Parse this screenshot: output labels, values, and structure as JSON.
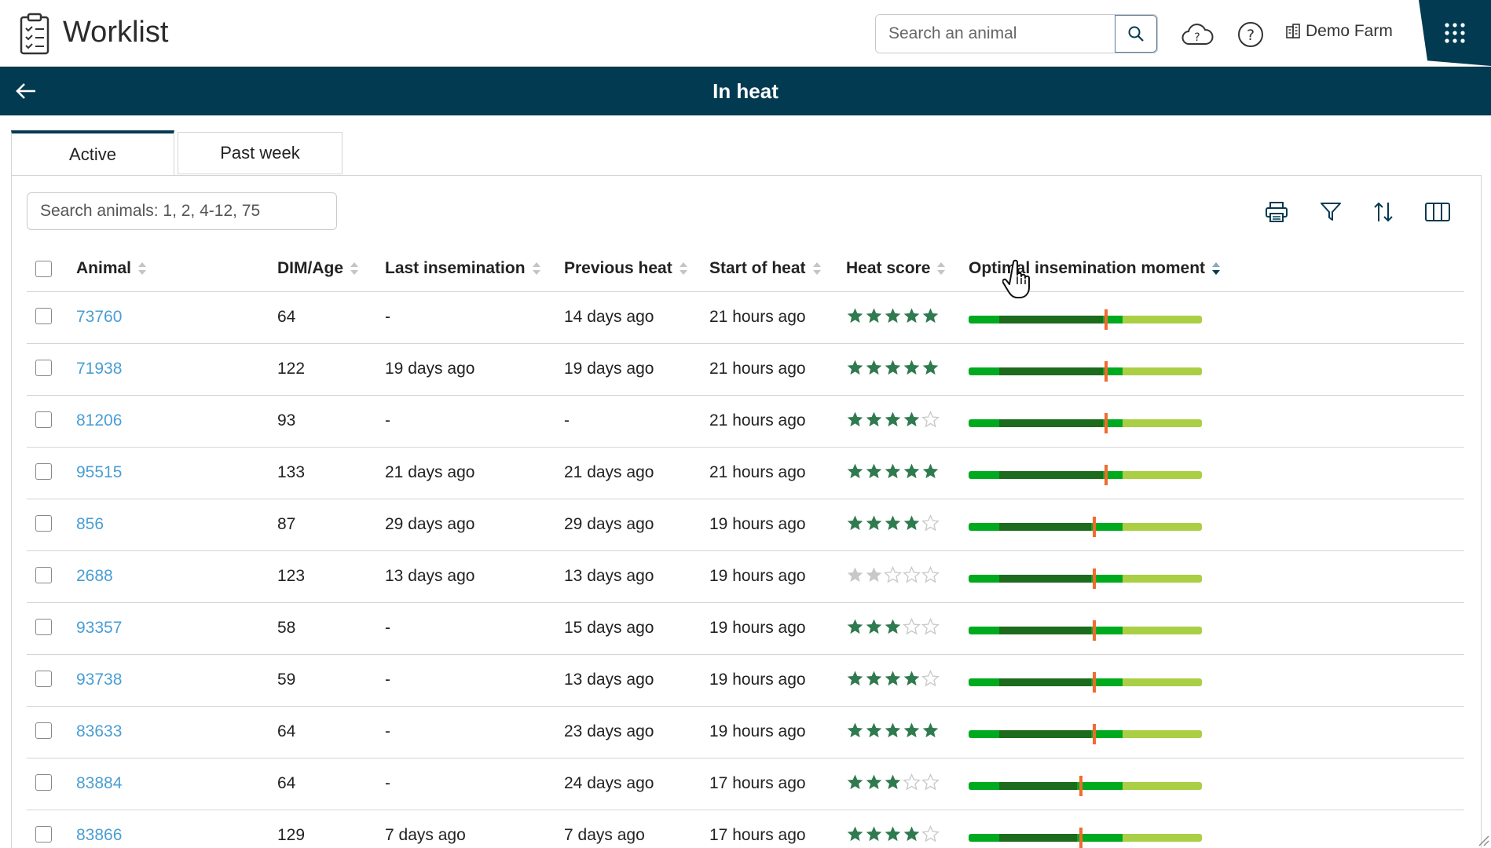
{
  "header": {
    "app_title": "Worklist",
    "search_placeholder": "Search an animal",
    "farm_name": "Demo Farm",
    "icons": [
      "clipboard-icon",
      "search-icon",
      "cloud-help-icon",
      "help-icon",
      "farm-building-icon",
      "apps-grid-icon"
    ]
  },
  "titlebar": {
    "title": "In heat"
  },
  "tabs": [
    {
      "label": "Active",
      "active": true
    },
    {
      "label": "Past week",
      "active": false
    }
  ],
  "filter": {
    "placeholder": "Search animals: 1, 2, 4-12, 75"
  },
  "toolbar_icons": [
    "print-icon",
    "filter-icon",
    "sort-icon",
    "columns-icon"
  ],
  "columns": [
    "Animal",
    "DIM/Age",
    "Last insemination",
    "Previous heat",
    "Start of heat",
    "Heat score",
    "Optimal insemination moment"
  ],
  "sorted_column": "Optimal insemination moment",
  "rows": [
    {
      "animal": "73760",
      "dim": "64",
      "last_insemination": "-",
      "previous_heat": "14 days ago",
      "start_of_heat": "21 hours ago",
      "heat_score": 5,
      "moment": 0.59
    },
    {
      "animal": "71938",
      "dim": "122",
      "last_insemination": "19 days ago",
      "previous_heat": "19 days ago",
      "start_of_heat": "21 hours ago",
      "heat_score": 5,
      "moment": 0.59
    },
    {
      "animal": "81206",
      "dim": "93",
      "last_insemination": "-",
      "previous_heat": "-",
      "start_of_heat": "21 hours ago",
      "heat_score": 4,
      "moment": 0.59
    },
    {
      "animal": "95515",
      "dim": "133",
      "last_insemination": "21 days ago",
      "previous_heat": "21 days ago",
      "start_of_heat": "21 hours ago",
      "heat_score": 5,
      "moment": 0.59
    },
    {
      "animal": "856",
      "dim": "87",
      "last_insemination": "29 days ago",
      "previous_heat": "29 days ago",
      "start_of_heat": "19 hours ago",
      "heat_score": 4,
      "moment": 0.54
    },
    {
      "animal": "2688",
      "dim": "123",
      "last_insemination": "13 days ago",
      "previous_heat": "13 days ago",
      "start_of_heat": "19 hours ago",
      "heat_score": 2,
      "heat_score_muted": true,
      "moment": 0.54
    },
    {
      "animal": "93357",
      "dim": "58",
      "last_insemination": "-",
      "previous_heat": "15 days ago",
      "start_of_heat": "19 hours ago",
      "heat_score": 3,
      "moment": 0.54
    },
    {
      "animal": "93738",
      "dim": "59",
      "last_insemination": "-",
      "previous_heat": "13 days ago",
      "start_of_heat": "19 hours ago",
      "heat_score": 4,
      "moment": 0.54
    },
    {
      "animal": "83633",
      "dim": "64",
      "last_insemination": "-",
      "previous_heat": "23 days ago",
      "start_of_heat": "19 hours ago",
      "heat_score": 5,
      "moment": 0.54
    },
    {
      "animal": "83884",
      "dim": "64",
      "last_insemination": "-",
      "previous_heat": "24 days ago",
      "start_of_heat": "17 hours ago",
      "heat_score": 3,
      "moment": 0.48
    },
    {
      "animal": "83866",
      "dim": "129",
      "last_insemination": "7 days ago",
      "previous_heat": "7 days ago",
      "start_of_heat": "17 hours ago",
      "heat_score": 4,
      "moment": 0.48
    }
  ],
  "colors": {
    "brand_dark": "#023a51",
    "link": "#4a9ed4",
    "star_filled": "#2f7a4f",
    "star_empty": "#c8c8c8",
    "bar_green": "#00aa1e",
    "bar_dark_green": "#1d6b1d",
    "bar_light_green": "#aacf45",
    "marker": "#f26a2e"
  }
}
